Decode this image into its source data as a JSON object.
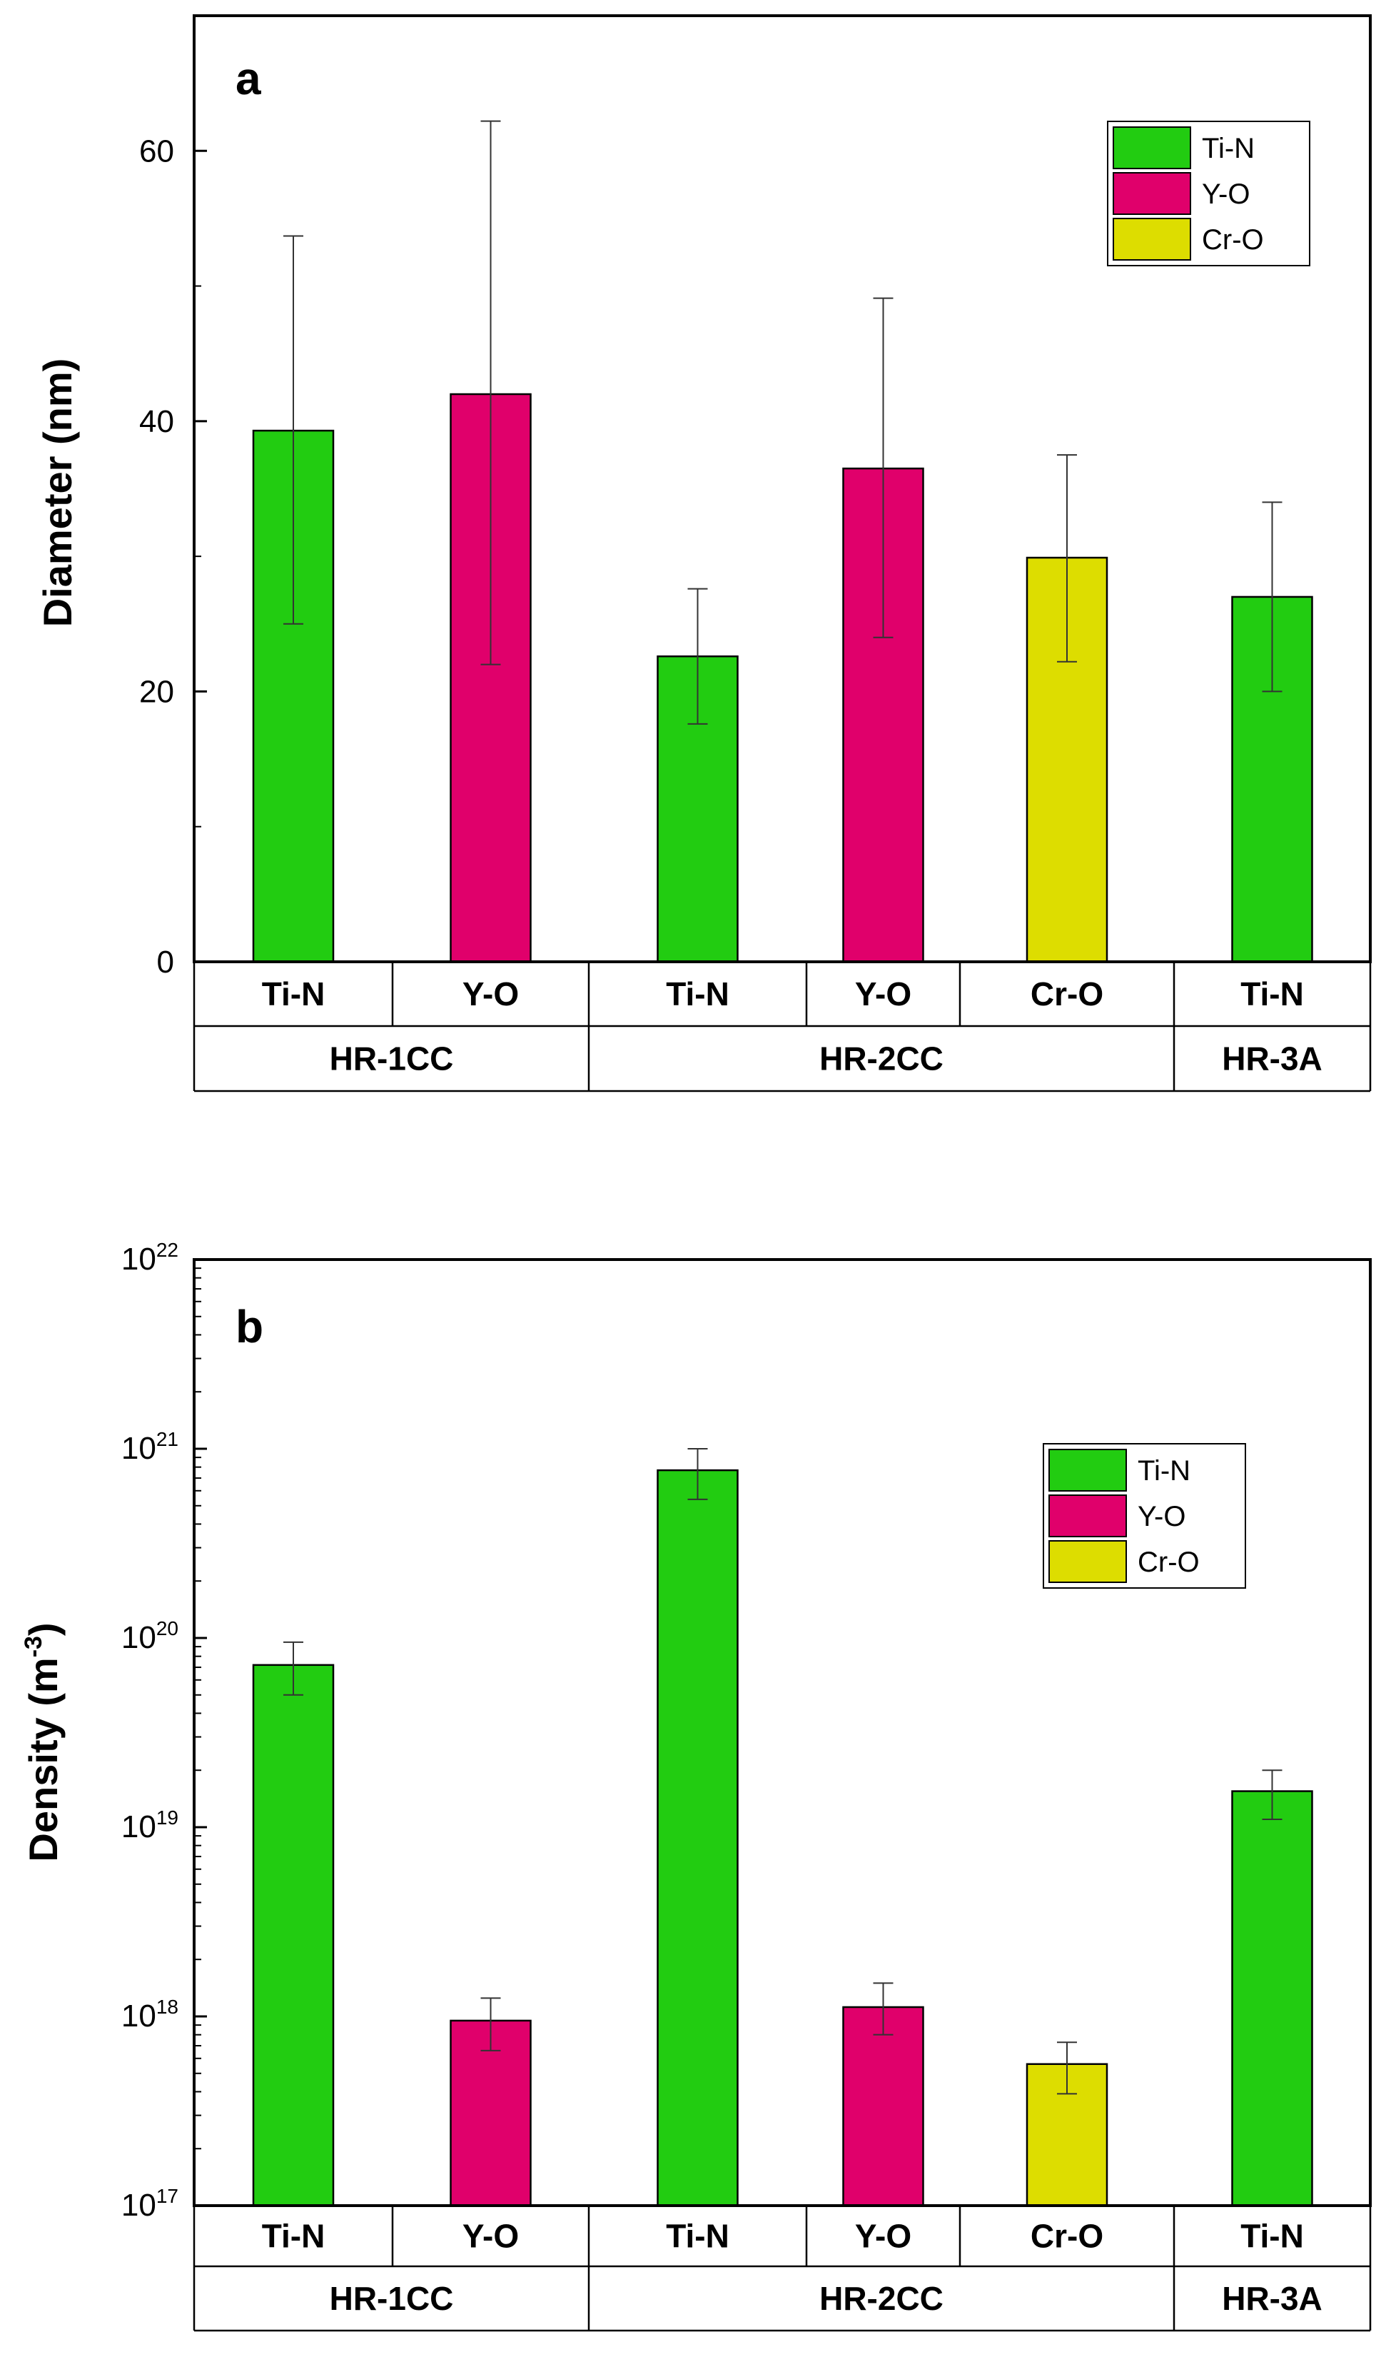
{
  "colors": {
    "Ti-N": "#22cc11",
    "Y-O": "#e0006b",
    "Cr-O": "#dddd00"
  },
  "chart_data": [
    {
      "type": "bar",
      "panel": "a",
      "ylabel": "Diameter (nm)",
      "yscale": "linear",
      "ylim": [
        0,
        70
      ],
      "yticks": [
        "0",
        "20",
        "40",
        "60"
      ],
      "legend": [
        "Ti-N",
        "Y-O",
        "Cr-O"
      ],
      "legend_position": "top-right",
      "categories": [
        "Ti-N",
        "Y-O",
        "Ti-N",
        "Y-O",
        "Cr-O",
        "Ti-N"
      ],
      "groups": [
        {
          "label": "HR-1CC",
          "span": [
            0,
            1
          ]
        },
        {
          "label": "HR-2CC",
          "span": [
            2,
            4
          ]
        },
        {
          "label": "HR-3A",
          "span": [
            5,
            5
          ]
        }
      ],
      "bars": [
        {
          "series": "Ti-N",
          "value": 39.3,
          "err_low": 25.0,
          "err_high": 53.7
        },
        {
          "series": "Y-O",
          "value": 42.0,
          "err_low": 22.0,
          "err_high": 62.2
        },
        {
          "series": "Ti-N",
          "value": 22.6,
          "err_low": 17.6,
          "err_high": 27.6
        },
        {
          "series": "Y-O",
          "value": 36.5,
          "err_low": 24.0,
          "err_high": 49.1
        },
        {
          "series": "Cr-O",
          "value": 29.9,
          "err_low": 22.2,
          "err_high": 37.5
        },
        {
          "series": "Ti-N",
          "value": 27.0,
          "err_low": 20.0,
          "err_high": 34.0
        }
      ]
    },
    {
      "type": "bar",
      "panel": "b",
      "ylabel": "Density (m",
      "ylabel_exp": "-3",
      "ylabel_close": ")",
      "yscale": "log",
      "ylim": [
        1e+17,
        1e+22
      ],
      "yticks": [
        {
          "base": "10",
          "exp": "17"
        },
        {
          "base": "10",
          "exp": "18"
        },
        {
          "base": "10",
          "exp": "19"
        },
        {
          "base": "10",
          "exp": "20"
        },
        {
          "base": "10",
          "exp": "21"
        },
        {
          "base": "10",
          "exp": "22"
        }
      ],
      "legend": [
        "Ti-N",
        "Y-O",
        "Cr-O"
      ],
      "legend_position": "top-right",
      "categories": [
        "Ti-N",
        "Y-O",
        "Ti-N",
        "Y-O",
        "Cr-O",
        "Ti-N"
      ],
      "groups": [
        {
          "label": "HR-1CC",
          "span": [
            0,
            1
          ]
        },
        {
          "label": "HR-2CC",
          "span": [
            2,
            4
          ]
        },
        {
          "label": "HR-3A",
          "span": [
            5,
            5
          ]
        }
      ],
      "bars": [
        {
          "series": "Ti-N",
          "value": 7.2e+19,
          "err_low": 5e+19,
          "err_high": 9.5e+19
        },
        {
          "series": "Y-O",
          "value": 9.5e+17,
          "err_low": 6.6e+17,
          "err_high": 1.25e+18
        },
        {
          "series": "Ti-N",
          "value": 7.7e+20,
          "err_low": 5.4e+20,
          "err_high": 1e+21
        },
        {
          "series": "Y-O",
          "value": 1.12e+18,
          "err_low": 8e+17,
          "err_high": 1.5e+18
        },
        {
          "series": "Cr-O",
          "value": 5.6e+17,
          "err_low": 3.9e+17,
          "err_high": 7.3e+17
        },
        {
          "series": "Ti-N",
          "value": 1.55e+19,
          "err_low": 1.1e+19,
          "err_high": 2e+19
        }
      ]
    }
  ]
}
